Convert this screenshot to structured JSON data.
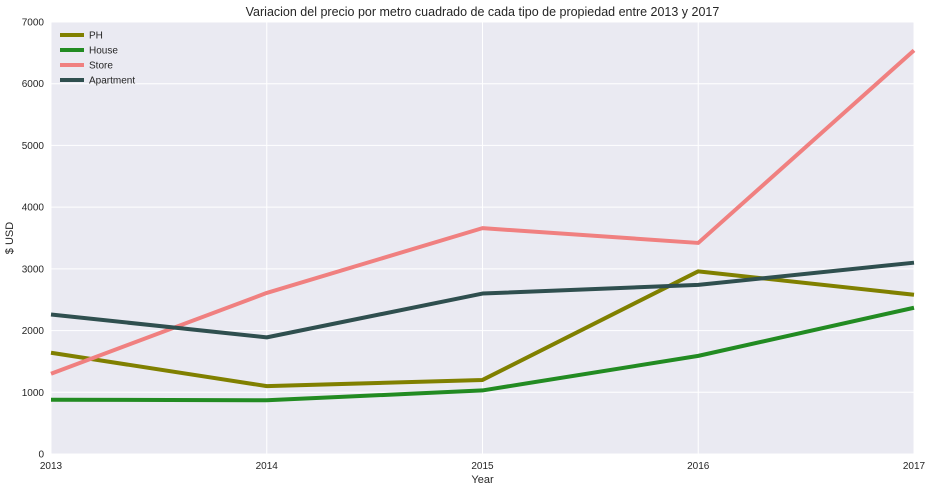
{
  "chart_data": {
    "type": "line",
    "title": "Variacion del precio por metro cuadrado de cada tipo de propiedad entre 2013 y 2017",
    "xlabel": "Year",
    "ylabel": "$ USD",
    "x": [
      2013,
      2014,
      2015,
      2016,
      2017
    ],
    "x_tick_labels": [
      "2013",
      "2014",
      "2015",
      "2016",
      "2017"
    ],
    "ylim": [
      0,
      7000
    ],
    "y_ticks": [
      0,
      1000,
      2000,
      3000,
      4000,
      5000,
      6000,
      7000
    ],
    "y_tick_labels": [
      "0",
      "1000",
      "2000",
      "3000",
      "4000",
      "5000",
      "6000",
      "7000"
    ],
    "grid": true,
    "legend_position": "top-left",
    "series": [
      {
        "name": "PH",
        "color": "#808000",
        "values": [
          1640,
          1100,
          1200,
          2960,
          2580
        ]
      },
      {
        "name": "House",
        "color": "#228b22",
        "values": [
          880,
          870,
          1030,
          1590,
          2370
        ]
      },
      {
        "name": "Store",
        "color": "#f08080",
        "values": [
          1300,
          2610,
          3660,
          3420,
          6540
        ]
      },
      {
        "name": "Apartment",
        "color": "#2f4f4f",
        "values": [
          2260,
          1890,
          2600,
          2740,
          3100
        ]
      }
    ]
  }
}
